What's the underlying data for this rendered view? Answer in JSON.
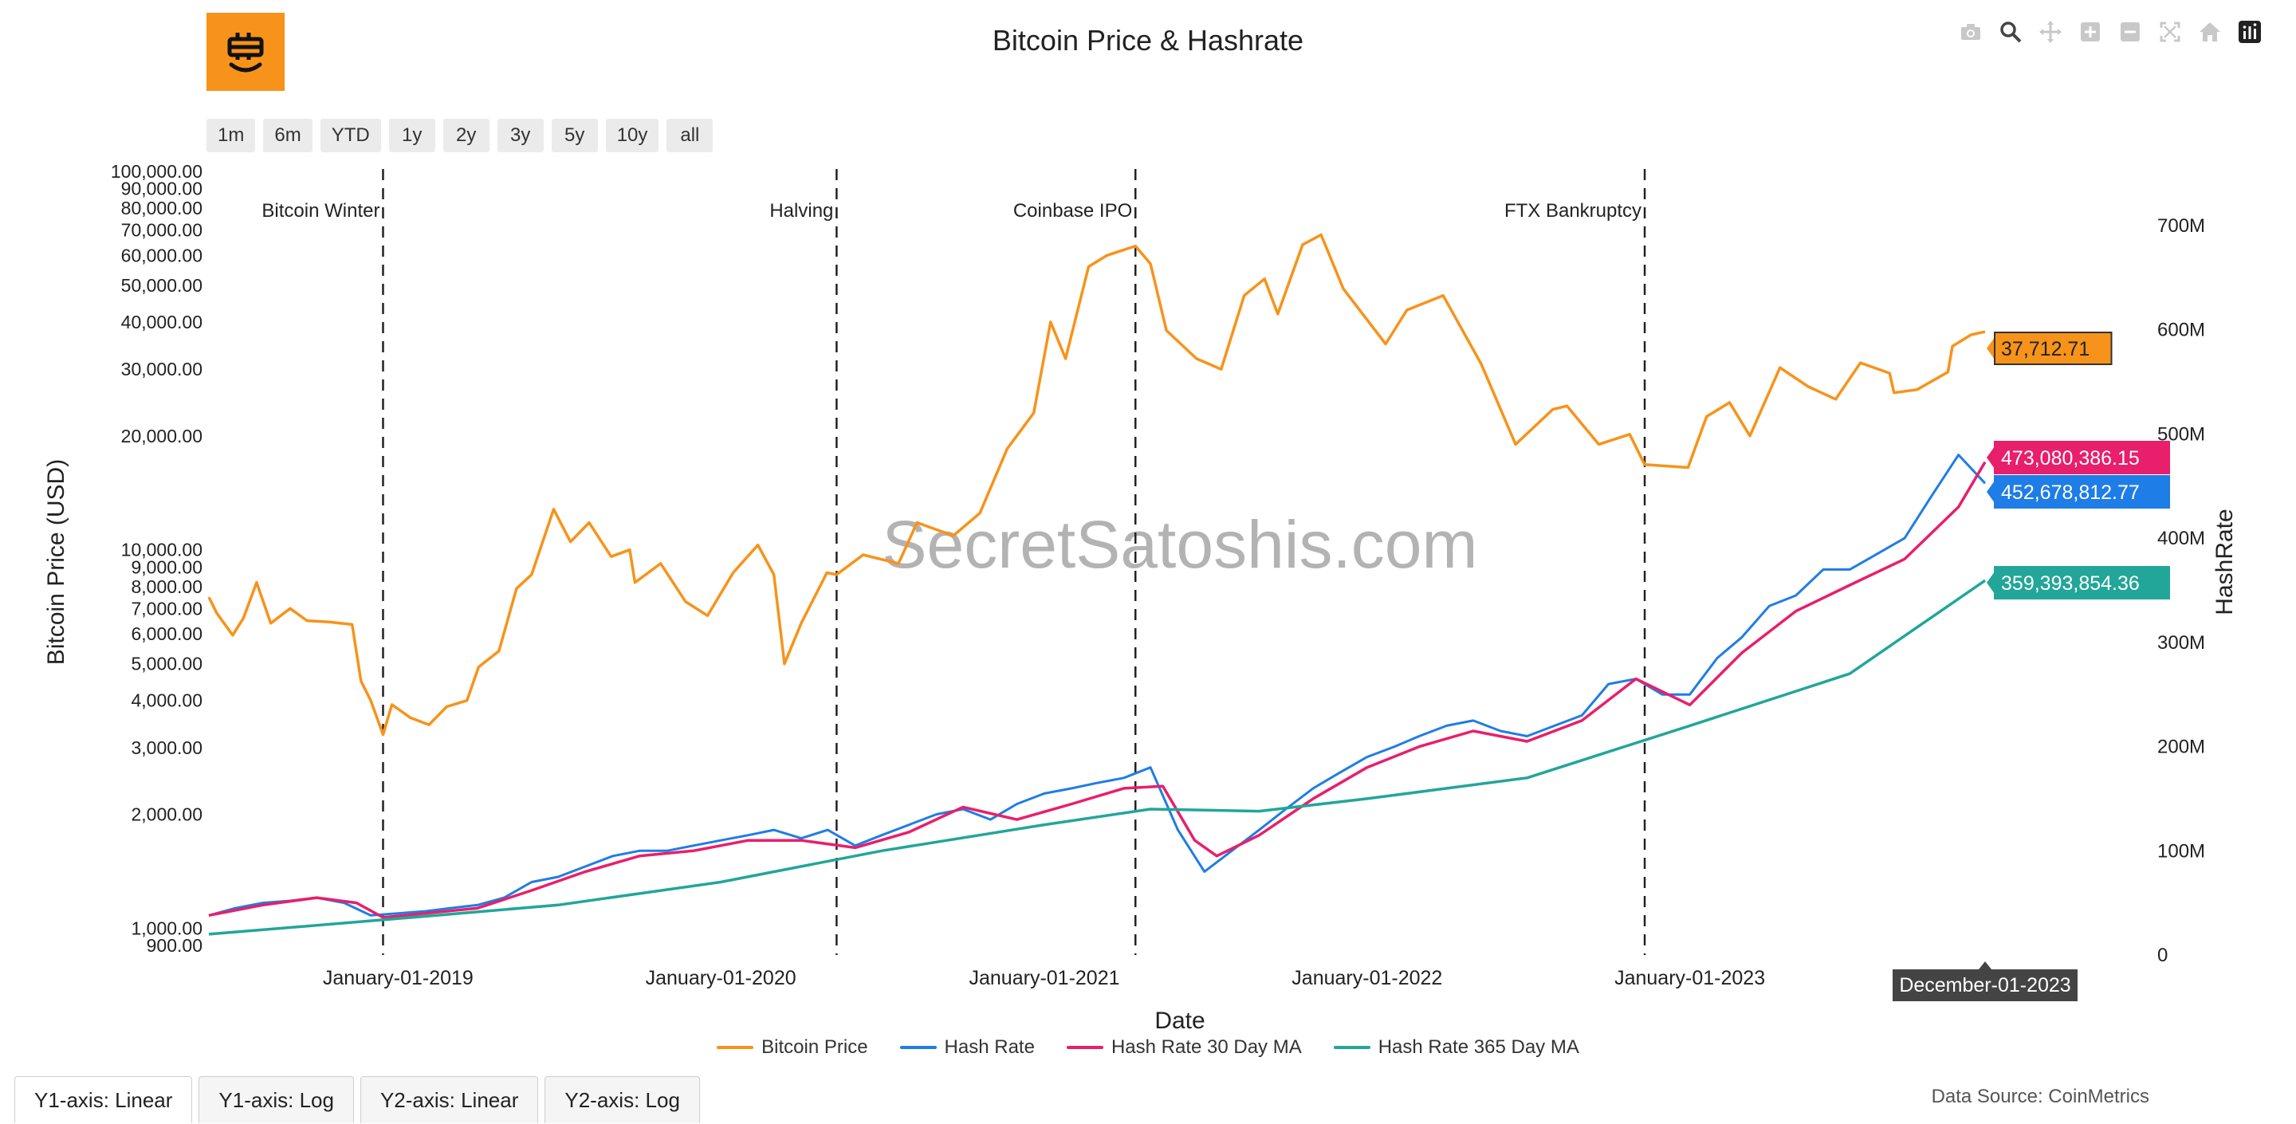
{
  "header": {
    "title": "Bitcoin Price & Hashrate"
  },
  "toolbar": {
    "icons": [
      "camera-icon",
      "zoom-icon",
      "pan-icon",
      "zoom-in-icon",
      "zoom-out-icon",
      "autoscale-icon",
      "reset-home-icon",
      "plotly-logo-icon"
    ]
  },
  "range_buttons": [
    "1m",
    "6m",
    "YTD",
    "1y",
    "2y",
    "3y",
    "5y",
    "10y",
    "all"
  ],
  "axis_tabs": [
    "Y1-axis: Linear",
    "Y1-axis: Log",
    "Y2-axis: Linear",
    "Y2-axis: Log"
  ],
  "footer": {
    "data_source": "Data Source: CoinMetrics"
  },
  "watermark": "SecretSatoshis.com",
  "hover_label": "December-01-2023",
  "chart_data": {
    "type": "line",
    "title": "Bitcoin Price & Hashrate",
    "xlabel": "Date",
    "ylabel": "Bitcoin Price (USD)",
    "y2label": "HashRate",
    "x_range": [
      "2018-06-01",
      "2023-12-10"
    ],
    "y_scale": "log",
    "y_range": [
      850,
      100000
    ],
    "y2_range": [
      0,
      700000000
    ],
    "x_ticks": [
      {
        "date": "2019-01-01",
        "label": "January-01-2019"
      },
      {
        "date": "2020-01-01",
        "label": "January-01-2020"
      },
      {
        "date": "2021-01-01",
        "label": "January-01-2021"
      },
      {
        "date": "2022-01-01",
        "label": "January-01-2022"
      },
      {
        "date": "2023-01-01",
        "label": "January-01-2023"
      }
    ],
    "y_ticks": [
      {
        "value": 900,
        "label": "900.00"
      },
      {
        "value": 1000,
        "label": "1,000.00"
      },
      {
        "value": 2000,
        "label": "2,000.00"
      },
      {
        "value": 3000,
        "label": "3,000.00"
      },
      {
        "value": 4000,
        "label": "4,000.00"
      },
      {
        "value": 5000,
        "label": "5,000.00"
      },
      {
        "value": 6000,
        "label": "6,000.00"
      },
      {
        "value": 7000,
        "label": "7,000.00"
      },
      {
        "value": 8000,
        "label": "8,000.00"
      },
      {
        "value": 9000,
        "label": "9,000.00"
      },
      {
        "value": 10000,
        "label": "10,000.00"
      },
      {
        "value": 20000,
        "label": "20,000.00"
      },
      {
        "value": 30000,
        "label": "30,000.00"
      },
      {
        "value": 40000,
        "label": "40,000.00"
      },
      {
        "value": 50000,
        "label": "50,000.00"
      },
      {
        "value": 60000,
        "label": "60,000.00"
      },
      {
        "value": 70000,
        "label": "70,000.00"
      },
      {
        "value": 80000,
        "label": "80,000.00"
      },
      {
        "value": 90000,
        "label": "90,000.00"
      },
      {
        "value": 100000,
        "label": "100,000.00"
      }
    ],
    "y2_ticks": [
      {
        "value": 0,
        "label": "0"
      },
      {
        "value": 100000000,
        "label": "100M"
      },
      {
        "value": 200000000,
        "label": "200M"
      },
      {
        "value": 300000000,
        "label": "300M"
      },
      {
        "value": 400000000,
        "label": "400M"
      },
      {
        "value": 500000000,
        "label": "500M"
      },
      {
        "value": 600000000,
        "label": "600M"
      },
      {
        "value": 700000000,
        "label": "700M"
      }
    ],
    "events": [
      {
        "date": "2018-12-15",
        "label": "Bitcoin Winter",
        "label_side": "left"
      },
      {
        "date": "2020-05-11",
        "label": "Halving",
        "label_side": "left"
      },
      {
        "date": "2021-04-14",
        "label": "Coinbase IPO",
        "label_side": "left"
      },
      {
        "date": "2022-11-11",
        "label": "FTX Bankruptcy",
        "label_side": "left"
      }
    ],
    "series": [
      {
        "name": "Bitcoin Price",
        "color": "#f7931a",
        "axis": "y",
        "end_label": "37,712.71",
        "points": [
          [
            "2018-06-01",
            7500
          ],
          [
            "2018-06-10",
            6800
          ],
          [
            "2018-06-28",
            5950
          ],
          [
            "2018-07-10",
            6600
          ],
          [
            "2018-07-25",
            8200
          ],
          [
            "2018-08-10",
            6400
          ],
          [
            "2018-09-01",
            7000
          ],
          [
            "2018-09-20",
            6500
          ],
          [
            "2018-10-15",
            6450
          ],
          [
            "2018-11-10",
            6350
          ],
          [
            "2018-11-20",
            4500
          ],
          [
            "2018-12-01",
            4000
          ],
          [
            "2018-12-15",
            3250
          ],
          [
            "2018-12-25",
            3900
          ],
          [
            "2019-01-15",
            3600
          ],
          [
            "2019-02-05",
            3450
          ],
          [
            "2019-02-25",
            3850
          ],
          [
            "2019-03-20",
            4000
          ],
          [
            "2019-04-02",
            4900
          ],
          [
            "2019-04-25",
            5400
          ],
          [
            "2019-05-15",
            7900
          ],
          [
            "2019-06-01",
            8600
          ],
          [
            "2019-06-26",
            12800
          ],
          [
            "2019-07-15",
            10500
          ],
          [
            "2019-08-05",
            11800
          ],
          [
            "2019-08-30",
            9600
          ],
          [
            "2019-09-20",
            10000
          ],
          [
            "2019-09-26",
            8200
          ],
          [
            "2019-10-25",
            9200
          ],
          [
            "2019-11-22",
            7300
          ],
          [
            "2019-12-17",
            6700
          ],
          [
            "2020-01-15",
            8700
          ],
          [
            "2020-02-12",
            10300
          ],
          [
            "2020-03-01",
            8600
          ],
          [
            "2020-03-13",
            5000
          ],
          [
            "2020-04-01",
            6400
          ],
          [
            "2020-04-30",
            8700
          ],
          [
            "2020-05-11",
            8600
          ],
          [
            "2020-06-10",
            9700
          ],
          [
            "2020-07-20",
            9200
          ],
          [
            "2020-08-10",
            11800
          ],
          [
            "2020-09-20",
            10900
          ],
          [
            "2020-10-20",
            12500
          ],
          [
            "2020-11-20",
            18500
          ],
          [
            "2020-12-20",
            23000
          ],
          [
            "2021-01-08",
            40000
          ],
          [
            "2021-01-25",
            32000
          ],
          [
            "2021-02-20",
            56000
          ],
          [
            "2021-03-13",
            60000
          ],
          [
            "2021-04-14",
            63500
          ],
          [
            "2021-05-01",
            57000
          ],
          [
            "2021-05-19",
            38000
          ],
          [
            "2021-06-22",
            32000
          ],
          [
            "2021-07-20",
            30000
          ],
          [
            "2021-08-15",
            47000
          ],
          [
            "2021-09-07",
            52000
          ],
          [
            "2021-09-22",
            42000
          ],
          [
            "2021-10-20",
            64000
          ],
          [
            "2021-11-10",
            68000
          ],
          [
            "2021-12-05",
            49000
          ],
          [
            "2022-01-22",
            35000
          ],
          [
            "2022-02-15",
            43000
          ],
          [
            "2022-03-28",
            47000
          ],
          [
            "2022-05-10",
            31000
          ],
          [
            "2022-06-18",
            19000
          ],
          [
            "2022-07-30",
            23500
          ],
          [
            "2022-08-15",
            24000
          ],
          [
            "2022-09-20",
            19000
          ],
          [
            "2022-10-25",
            20200
          ],
          [
            "2022-11-11",
            16800
          ],
          [
            "2022-12-30",
            16500
          ],
          [
            "2023-01-20",
            22500
          ],
          [
            "2023-02-15",
            24500
          ],
          [
            "2023-03-10",
            20000
          ],
          [
            "2023-04-13",
            30300
          ],
          [
            "2023-05-15",
            27000
          ],
          [
            "2023-06-15",
            25000
          ],
          [
            "2023-07-13",
            31200
          ],
          [
            "2023-08-15",
            29300
          ],
          [
            "2023-08-20",
            26000
          ],
          [
            "2023-09-15",
            26500
          ],
          [
            "2023-10-20",
            29500
          ],
          [
            "2023-10-25",
            34500
          ],
          [
            "2023-11-15",
            37000
          ],
          [
            "2023-12-01",
            37712.71
          ]
        ]
      },
      {
        "name": "Hash Rate",
        "color": "#1e7de6",
        "axis": "y2",
        "end_label": "452,678,812.77",
        "points": [
          [
            "2018-06-01",
            38000000
          ],
          [
            "2018-07-01",
            45000000
          ],
          [
            "2018-08-01",
            50000000
          ],
          [
            "2018-09-01",
            52000000
          ],
          [
            "2018-10-01",
            55000000
          ],
          [
            "2018-11-01",
            50000000
          ],
          [
            "2018-12-01",
            38000000
          ],
          [
            "2019-01-01",
            40000000
          ],
          [
            "2019-02-01",
            42000000
          ],
          [
            "2019-03-01",
            45000000
          ],
          [
            "2019-04-01",
            48000000
          ],
          [
            "2019-05-01",
            55000000
          ],
          [
            "2019-06-01",
            70000000
          ],
          [
            "2019-07-01",
            75000000
          ],
          [
            "2019-08-01",
            85000000
          ],
          [
            "2019-09-01",
            95000000
          ],
          [
            "2019-10-01",
            100000000
          ],
          [
            "2019-11-01",
            100000000
          ],
          [
            "2019-12-01",
            105000000
          ],
          [
            "2020-01-01",
            110000000
          ],
          [
            "2020-02-01",
            115000000
          ],
          [
            "2020-03-01",
            120000000
          ],
          [
            "2020-04-01",
            112000000
          ],
          [
            "2020-05-01",
            120000000
          ],
          [
            "2020-06-01",
            105000000
          ],
          [
            "2020-07-01",
            115000000
          ],
          [
            "2020-08-01",
            125000000
          ],
          [
            "2020-09-01",
            135000000
          ],
          [
            "2020-10-01",
            140000000
          ],
          [
            "2020-11-01",
            130000000
          ],
          [
            "2020-12-01",
            145000000
          ],
          [
            "2021-01-01",
            155000000
          ],
          [
            "2021-02-01",
            160000000
          ],
          [
            "2021-03-01",
            165000000
          ],
          [
            "2021-04-01",
            170000000
          ],
          [
            "2021-05-01",
            180000000
          ],
          [
            "2021-06-01",
            120000000
          ],
          [
            "2021-07-01",
            80000000
          ],
          [
            "2021-08-01",
            100000000
          ],
          [
            "2021-09-01",
            120000000
          ],
          [
            "2021-10-01",
            140000000
          ],
          [
            "2021-11-01",
            160000000
          ],
          [
            "2021-12-01",
            175000000
          ],
          [
            "2022-01-01",
            190000000
          ],
          [
            "2022-02-01",
            200000000
          ],
          [
            "2022-03-01",
            210000000
          ],
          [
            "2022-04-01",
            220000000
          ],
          [
            "2022-05-01",
            225000000
          ],
          [
            "2022-06-01",
            215000000
          ],
          [
            "2022-07-01",
            210000000
          ],
          [
            "2022-08-01",
            220000000
          ],
          [
            "2022-09-01",
            230000000
          ],
          [
            "2022-10-01",
            260000000
          ],
          [
            "2022-11-01",
            265000000
          ],
          [
            "2022-12-01",
            250000000
          ],
          [
            "2023-01-01",
            250000000
          ],
          [
            "2023-02-01",
            285000000
          ],
          [
            "2023-03-01",
            305000000
          ],
          [
            "2023-04-01",
            335000000
          ],
          [
            "2023-05-01",
            345000000
          ],
          [
            "2023-06-01",
            370000000
          ],
          [
            "2023-07-01",
            370000000
          ],
          [
            "2023-08-01",
            385000000
          ],
          [
            "2023-09-01",
            400000000
          ],
          [
            "2023-10-01",
            440000000
          ],
          [
            "2023-11-01",
            480000000
          ],
          [
            "2023-12-01",
            452678812.77
          ]
        ]
      },
      {
        "name": "Hash Rate 30 Day MA",
        "color": "#e81f6b",
        "axis": "y2",
        "end_label": "473,080,386.15",
        "points": [
          [
            "2018-06-01",
            38000000
          ],
          [
            "2018-08-01",
            48000000
          ],
          [
            "2018-10-01",
            55000000
          ],
          [
            "2018-11-15",
            50000000
          ],
          [
            "2018-12-15",
            36000000
          ],
          [
            "2019-02-01",
            40000000
          ],
          [
            "2019-04-01",
            45000000
          ],
          [
            "2019-06-01",
            62000000
          ],
          [
            "2019-08-01",
            80000000
          ],
          [
            "2019-10-01",
            95000000
          ],
          [
            "2019-12-01",
            100000000
          ],
          [
            "2020-02-01",
            110000000
          ],
          [
            "2020-04-01",
            110000000
          ],
          [
            "2020-06-01",
            103000000
          ],
          [
            "2020-08-01",
            118000000
          ],
          [
            "2020-10-01",
            142000000
          ],
          [
            "2020-12-01",
            130000000
          ],
          [
            "2021-02-01",
            145000000
          ],
          [
            "2021-04-01",
            160000000
          ],
          [
            "2021-05-15",
            162000000
          ],
          [
            "2021-06-20",
            110000000
          ],
          [
            "2021-07-15",
            95000000
          ],
          [
            "2021-09-01",
            115000000
          ],
          [
            "2021-11-01",
            150000000
          ],
          [
            "2022-01-01",
            180000000
          ],
          [
            "2022-03-01",
            200000000
          ],
          [
            "2022-05-01",
            215000000
          ],
          [
            "2022-07-01",
            205000000
          ],
          [
            "2022-09-01",
            225000000
          ],
          [
            "2022-11-01",
            265000000
          ],
          [
            "2023-01-01",
            240000000
          ],
          [
            "2023-03-01",
            290000000
          ],
          [
            "2023-05-01",
            330000000
          ],
          [
            "2023-07-01",
            355000000
          ],
          [
            "2023-09-01",
            380000000
          ],
          [
            "2023-11-01",
            430000000
          ],
          [
            "2023-12-01",
            473080386.15
          ]
        ]
      },
      {
        "name": "Hash Rate 365 Day MA",
        "color": "#22a699",
        "axis": "y2",
        "end_label": "359,393,854.36",
        "points": [
          [
            "2018-06-01",
            20000000
          ],
          [
            "2019-01-01",
            35000000
          ],
          [
            "2019-07-01",
            48000000
          ],
          [
            "2020-01-01",
            70000000
          ],
          [
            "2020-07-01",
            100000000
          ],
          [
            "2021-01-01",
            125000000
          ],
          [
            "2021-05-01",
            140000000
          ],
          [
            "2021-09-01",
            138000000
          ],
          [
            "2022-01-01",
            150000000
          ],
          [
            "2022-07-01",
            170000000
          ],
          [
            "2023-01-01",
            220000000
          ],
          [
            "2023-07-01",
            270000000
          ],
          [
            "2023-12-01",
            359393854.36
          ]
        ]
      }
    ]
  }
}
